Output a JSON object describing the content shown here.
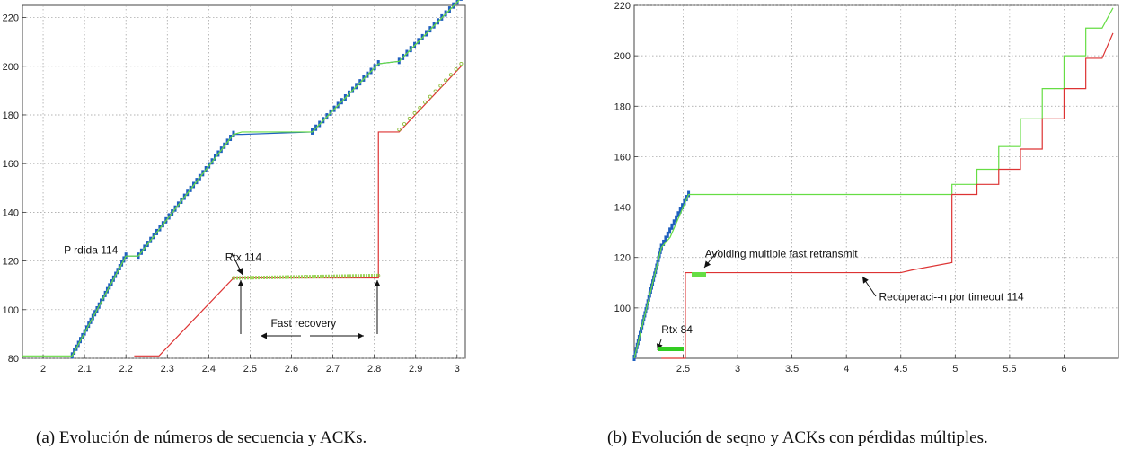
{
  "chart_data": [
    {
      "type": "line",
      "caption": "(a)  Evolución de números de secuencia y ACKs.",
      "xlim": [
        1.95,
        3.02
      ],
      "ylim": [
        80,
        225
      ],
      "xticks": [
        "2",
        "2.1",
        "2.2",
        "2.3",
        "2.4",
        "2.5",
        "2.6",
        "2.7",
        "2.8",
        "2.9",
        "3"
      ],
      "yticks": [
        "80",
        "100",
        "120",
        "140",
        "160",
        "180",
        "200",
        "220"
      ],
      "grid": true,
      "series": [
        {
          "role": "seqno",
          "color": "#1f5fbf",
          "points": [
            [
              2.07,
              81
            ],
            [
              2.2,
              122
            ],
            [
              2.23,
              122
            ],
            [
              2.46,
              172
            ],
            [
              2.48,
              172
            ],
            [
              2.65,
              173
            ],
            [
              2.81,
              201
            ],
            [
              2.86,
              202
            ],
            [
              3.01,
              228
            ]
          ]
        },
        {
          "role": "sent-step",
          "color": "#66dd44",
          "points": [
            [
              1.95,
              81
            ],
            [
              2.07,
              81
            ],
            [
              2.2,
              122
            ],
            [
              2.23,
              122
            ],
            [
              2.46,
              172
            ],
            [
              2.48,
              173
            ],
            [
              2.65,
              173
            ],
            [
              2.81,
              201
            ],
            [
              2.86,
              202
            ],
            [
              3.01,
              228
            ]
          ]
        },
        {
          "role": "ack",
          "color": "#dd3333",
          "points": [
            [
              2.22,
              81
            ],
            [
              2.28,
              81
            ],
            [
              2.46,
              113
            ],
            [
              2.48,
              113
            ],
            [
              2.81,
              113
            ],
            [
              2.81,
              173
            ],
            [
              2.86,
              173
            ],
            [
              3.01,
              200
            ]
          ]
        },
        {
          "role": "ack-markers",
          "color": "#88bb33",
          "points": [
            [
              2.28,
              81
            ],
            [
              2.46,
              113
            ],
            [
              2.81,
              114
            ],
            [
              2.86,
              174
            ],
            [
              3.01,
              201
            ]
          ]
        }
      ],
      "annotations": [
        {
          "text": "P   rdida 114",
          "x": 2.05,
          "y": 123
        },
        {
          "text": "Rtx 114",
          "x": 2.44,
          "y": 120
        },
        {
          "text": "Fast recovery",
          "x": 2.55,
          "y": 93
        }
      ]
    },
    {
      "type": "line",
      "caption": "(b)  Evolución de seqno y ACKs con pérdidas múltiples.",
      "xlim": [
        2.05,
        6.5
      ],
      "ylim": [
        80,
        220
      ],
      "xticks": [
        "2.5",
        "3",
        "3.5",
        "4",
        "4.5",
        "5",
        "5.5",
        "6"
      ],
      "yticks": [
        "100",
        "120",
        "140",
        "160",
        "180",
        "200",
        "220"
      ],
      "grid": true,
      "series": [
        {
          "role": "seqno",
          "color": "#1f5fbf",
          "points": [
            [
              2.05,
              80
            ],
            [
              2.3,
              124
            ],
            [
              2.55,
              145
            ]
          ]
        },
        {
          "role": "sent-step",
          "color": "#66dd44",
          "points": [
            [
              2.05,
              80
            ],
            [
              2.3,
              124
            ],
            [
              2.38,
              128
            ],
            [
              2.55,
              145
            ],
            [
              4.97,
              145
            ],
            [
              4.97,
              149
            ],
            [
              5.2,
              149
            ],
            [
              5.2,
              155
            ],
            [
              5.4,
              155
            ],
            [
              5.4,
              164
            ],
            [
              5.6,
              164
            ],
            [
              5.6,
              175
            ],
            [
              5.8,
              175
            ],
            [
              5.8,
              187
            ],
            [
              6.0,
              187
            ],
            [
              6.0,
              200
            ],
            [
              6.2,
              200
            ],
            [
              6.2,
              211
            ],
            [
              6.35,
              211
            ],
            [
              6.45,
              219
            ]
          ]
        },
        {
          "role": "ack",
          "color": "#dd3333",
          "points": [
            [
              2.3,
              80
            ],
            [
              2.52,
              80
            ],
            [
              2.52,
              114
            ],
            [
              4.5,
              114
            ],
            [
              4.6,
              115
            ],
            [
              4.97,
              118
            ],
            [
              4.97,
              145
            ],
            [
              5.2,
              145
            ],
            [
              5.2,
              149
            ],
            [
              5.4,
              149
            ],
            [
              5.4,
              155
            ],
            [
              5.6,
              155
            ],
            [
              5.6,
              163
            ],
            [
              5.8,
              163
            ],
            [
              5.8,
              175
            ],
            [
              6.0,
              175
            ],
            [
              6.0,
              187
            ],
            [
              6.2,
              187
            ],
            [
              6.2,
              199
            ],
            [
              6.35,
              199
            ],
            [
              6.45,
              209
            ]
          ]
        }
      ],
      "annotations": [
        {
          "text": "Avoiding multiple fast retransmit",
          "x": 2.7,
          "y": 120
        },
        {
          "text": "Recuperaci--n por timeout 114",
          "x": 4.3,
          "y": 103
        },
        {
          "text": "Rtx 84",
          "x": 2.3,
          "y": 90
        }
      ]
    }
  ]
}
